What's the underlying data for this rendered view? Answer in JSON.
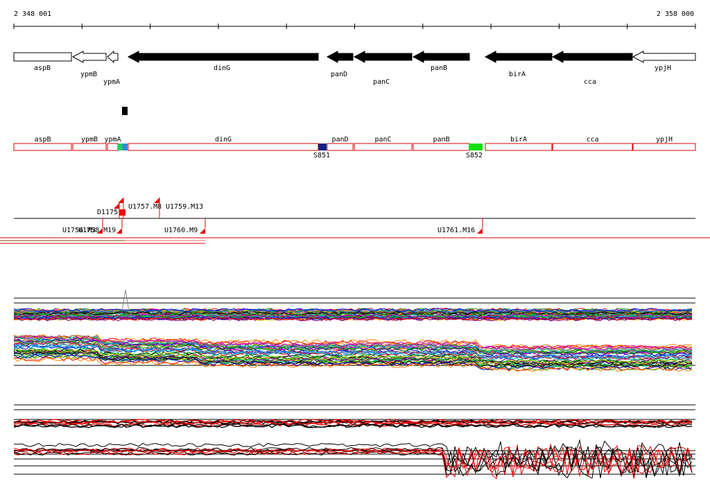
{
  "header": {
    "start": "2 348 001",
    "end": "2 358 000"
  },
  "genes": [
    "aspB",
    "ypmB",
    "ypmA",
    "dinG",
    "panD",
    "panC",
    "panB",
    "birA",
    "cca",
    "ypjH"
  ],
  "features": [
    "S851",
    "S852"
  ],
  "markers": [
    "U1757.M8",
    "U1759.M13",
    "D1175",
    "U1756.M3",
    "U1758.M19",
    "U1760.M9",
    "U1761.M16"
  ]
}
